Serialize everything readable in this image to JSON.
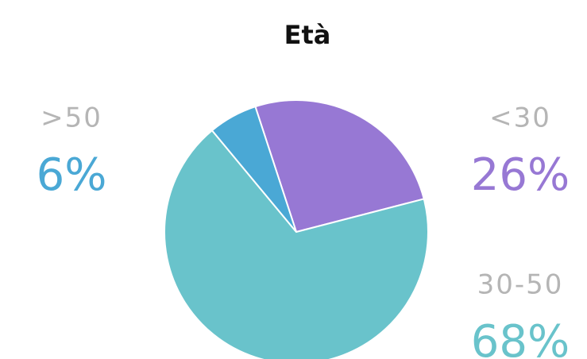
{
  "chart_data": {
    "type": "pie",
    "title": "Età",
    "categories": [
      "<30",
      "30-50",
      ">50"
    ],
    "values": [
      26,
      68,
      6
    ],
    "value_labels": [
      "26%",
      "68%",
      "6%"
    ],
    "colors": [
      "#9778d4",
      "#69c3cb",
      "#4aa8d5"
    ]
  }
}
